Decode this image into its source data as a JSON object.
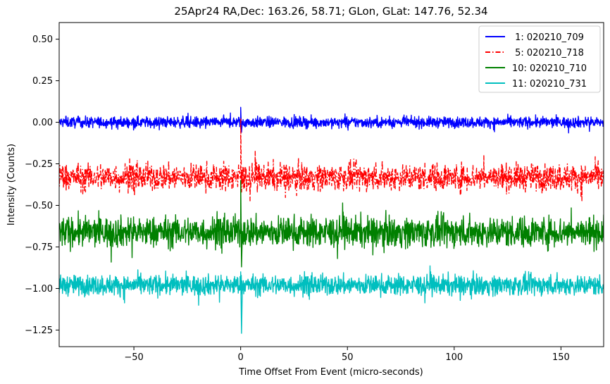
{
  "chart_data": {
    "type": "line",
    "title": "25Apr24 RA,Dec:  163.26,  58.71; GLon, GLat:  147.76,  52.34",
    "xlabel": "Time Offset From Event (micro-seconds)",
    "ylabel": "Intensity (Counts)",
    "xlim": [
      -85,
      170
    ],
    "ylim": [
      -1.35,
      0.6
    ],
    "xticks": [
      -50,
      0,
      50,
      100,
      150
    ],
    "xtick_labels": [
      "−50",
      "0",
      "50",
      "100",
      "150"
    ],
    "yticks": [
      0.5,
      0.25,
      0.0,
      -0.25,
      -0.5,
      -0.75,
      -1.0,
      -1.25
    ],
    "ytick_labels": [
      "0.50",
      "0.25",
      "0.00",
      "−0.25",
      "−0.50",
      "−0.75",
      "−1.00",
      "−1.25"
    ],
    "grid": false,
    "legend_position": "top-right",
    "series": [
      {
        "name": " 1: 020210_709",
        "color": "#0000ff",
        "style": "solid",
        "baseline": 0.0,
        "noise": 0.016,
        "spike_max": 0.09,
        "spike_min": -0.06
      },
      {
        "name": " 5: 020210_718",
        "color": "#ff0000",
        "style": "dashdot",
        "baseline": -0.33,
        "noise": 0.04,
        "spike_max": 0.02,
        "spike_min": -0.42
      },
      {
        "name": "10: 020210_710",
        "color": "#008000",
        "style": "solid",
        "baseline": -0.66,
        "noise": 0.045,
        "spike_max": -0.35,
        "spike_min": -0.87
      },
      {
        "name": "11: 020210_731",
        "color": "#00bfbf",
        "style": "solid",
        "baseline": -0.98,
        "noise": 0.03,
        "spike_max": -0.9,
        "spike_min": -1.27
      }
    ]
  }
}
